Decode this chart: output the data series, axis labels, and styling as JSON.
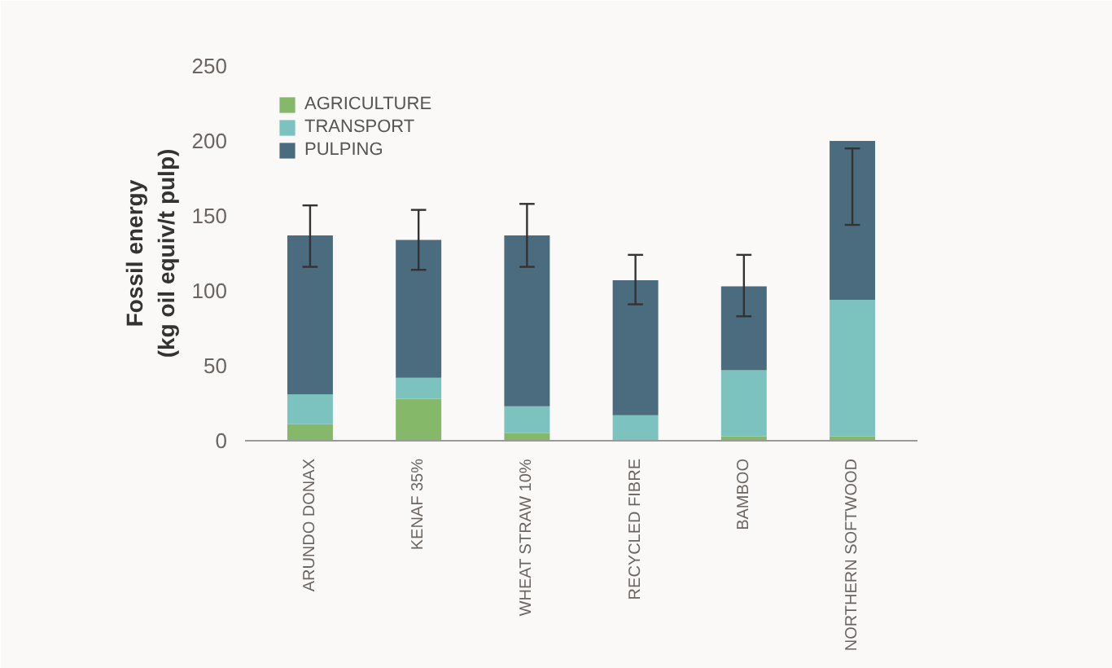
{
  "chart_data": {
    "type": "bar",
    "stacked": true,
    "ylabel": "Fossil energy\n(kg oil equiv/t pulp)",
    "categories": [
      "ARUNDO DONAX",
      "KENAF 35%",
      "WHEAT STRAW 10%",
      "RECYCLED FIBRE",
      "BAMBOO",
      "NORTHERN SOFTWOOD"
    ],
    "series": [
      {
        "name": "AGRICULTURE",
        "color": "#86b86a",
        "values": [
          11,
          28,
          5,
          null,
          3,
          3
        ]
      },
      {
        "name": "TRANSPORT",
        "color": "#7cc2bf",
        "values": [
          20,
          14,
          18,
          17,
          44,
          91
        ]
      },
      {
        "name": "PULPING",
        "color": "#4b6b7e",
        "values": [
          106,
          92,
          114,
          90,
          56,
          106
        ],
        "errors": [
          [
            116,
            157
          ],
          [
            114,
            154
          ],
          [
            116,
            158
          ],
          [
            91,
            124
          ],
          [
            83,
            124
          ],
          [
            144,
            195
          ]
        ]
      }
    ],
    "ylim": [
      0,
      250
    ],
    "yticks": [
      0,
      50,
      100,
      150,
      200,
      250
    ],
    "grid": false,
    "legend": "top left"
  }
}
